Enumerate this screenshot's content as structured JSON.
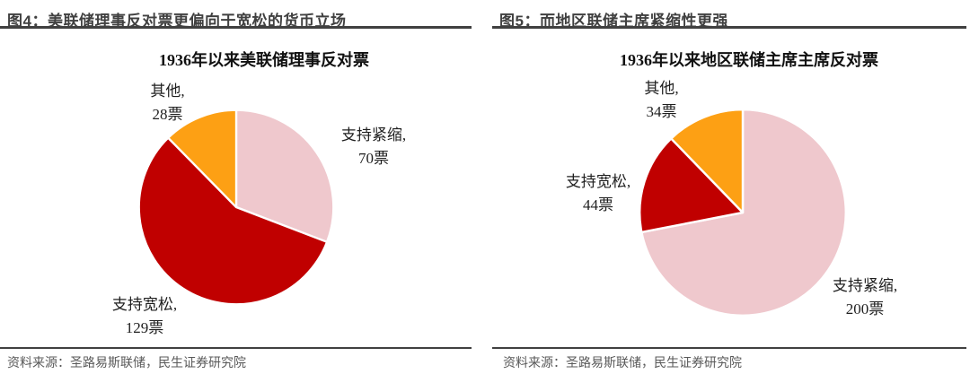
{
  "figures": [
    {
      "header": "图4：美联储理事反对票更偏向于宽松的货币立场",
      "source": "资料来源：圣路易斯联储，民生证券研究院"
    },
    {
      "header": "图5：而地区联储主席紧缩性更强",
      "source": "资料来源：圣路易斯联储，民生证券研究院"
    }
  ],
  "chart_data": [
    {
      "type": "pie",
      "title": "1936年以来美联储理事反对票",
      "start_angle_deg": 0,
      "direction": "clockwise",
      "total": 227,
      "legend_position": "none",
      "slices": [
        {
          "key": "tighten",
          "name": "支持紧缩",
          "value": 70,
          "label_line1": "支持紧缩,",
          "label_line2": "70票",
          "color": "#EFC8CD"
        },
        {
          "key": "easing",
          "name": "支持宽松",
          "value": 129,
          "label_line1": "支持宽松,",
          "label_line2": "129票",
          "color": "#C00000"
        },
        {
          "key": "other",
          "name": "其他",
          "value": 28,
          "label_line1": "其他,",
          "label_line2": "28票",
          "color": "#FDA014"
        }
      ]
    },
    {
      "type": "pie",
      "title": "1936年以来地区联储主席主席反对票",
      "start_angle_deg": 0,
      "direction": "clockwise",
      "total": 278,
      "legend_position": "none",
      "slices": [
        {
          "key": "tighten",
          "name": "支持紧缩",
          "value": 200,
          "label_line1": "支持紧缩,",
          "label_line2": "200票",
          "color": "#EFC8CD"
        },
        {
          "key": "easing",
          "name": "支持宽松",
          "value": 44,
          "label_line1": "支持宽松,",
          "label_line2": "44票",
          "color": "#C00000"
        },
        {
          "key": "other",
          "name": "其他",
          "value": 34,
          "label_line1": "其他,",
          "label_line2": "34票",
          "color": "#FDA014"
        }
      ]
    }
  ],
  "style": {
    "rule_color": "#404040",
    "header_text_color": "#404040",
    "source_text_color": "#595959",
    "slice_border_color": "#FFFFFF"
  }
}
